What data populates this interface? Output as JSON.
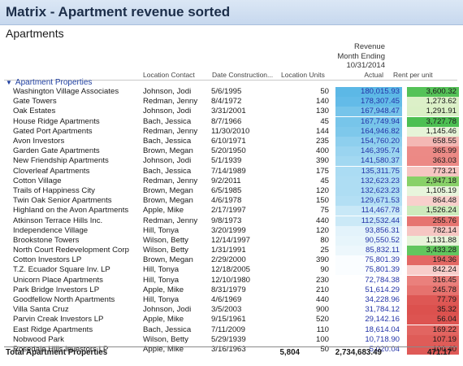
{
  "title": "Matrix - Apartment revenue sorted",
  "subtitle": "Apartments",
  "revenue_header": [
    "Revenue",
    "Month Ending",
    "10/31/2014"
  ],
  "columns": {
    "contact": "Location Contact",
    "date": "Date Construction...",
    "units": "Location Units",
    "actual": "Actual",
    "rpu": "Rent per unit"
  },
  "group_label": "Apartment Properties",
  "rows": [
    {
      "name": "Washington Village Associates",
      "contact": "Johnson, Jodi",
      "date": "5/6/1995",
      "units": "50",
      "actual": "180,015.93",
      "rpu": "3,600.32",
      "actual_color": "#5cb8e6",
      "rpu_color": "#55c258"
    },
    {
      "name": "Gate Towers",
      "contact": "Redman, Jenny",
      "date": "8/4/1972",
      "units": "140",
      "actual": "178,307.45",
      "rpu": "1,273.62",
      "actual_color": "#63bbe8",
      "rpu_color": "#dcf0c8"
    },
    {
      "name": "Oak Estates",
      "contact": "Johnson, Jodi",
      "date": "3/31/2001",
      "units": "130",
      "actual": "167,948.47",
      "rpu": "1,291.91",
      "actual_color": "#76c4ea",
      "rpu_color": "#daf0c6"
    },
    {
      "name": "House Ridge Apartments",
      "contact": "Bach, Jessica",
      "date": "8/7/1966",
      "units": "45",
      "actual": "167,749.94",
      "rpu": "3,727.78",
      "actual_color": "#77c5ea",
      "rpu_color": "#4cbf52"
    },
    {
      "name": "Gated Port Apartments",
      "contact": "Redman, Jenny",
      "date": "11/30/2010",
      "units": "144",
      "actual": "164,946.82",
      "rpu": "1,145.46",
      "actual_color": "#7ec8eb",
      "rpu_color": "#e6f4d8"
    },
    {
      "name": "Avon Investors",
      "contact": "Bach, Jessica",
      "date": "6/10/1971",
      "units": "235",
      "actual": "154,760.20",
      "rpu": "658.55",
      "actual_color": "#8ecfee",
      "rpu_color": "#f4b8b4"
    },
    {
      "name": "Garden Gate Apartments",
      "contact": "Brown, Megan",
      "date": "5/20/1950",
      "units": "400",
      "actual": "146,395.74",
      "rpu": "365.99",
      "actual_color": "#9ad4f0",
      "rpu_color": "#ec8a86"
    },
    {
      "name": "New Friendship Apartments",
      "contact": "Johnson, Jodi",
      "date": "5/1/1939",
      "units": "390",
      "actual": "141,580.37",
      "rpu": "363.03",
      "actual_color": "#a2d8f1",
      "rpu_color": "#ec8985"
    },
    {
      "name": "Cloverleaf Apartments",
      "contact": "Bach, Jessica",
      "date": "7/14/1989",
      "units": "175",
      "actual": "135,311.75",
      "rpu": "773.21",
      "actual_color": "#abdcf3",
      "rpu_color": "#f6c6c2"
    },
    {
      "name": "Cotton Village",
      "contact": "Redman, Jenny",
      "date": "9/2/2011",
      "units": "45",
      "actual": "132,623.23",
      "rpu": "2,947.18",
      "actual_color": "#aeddf3",
      "rpu_color": "#88d168"
    },
    {
      "name": "Trails of Happiness City",
      "contact": "Brown, Megan",
      "date": "6/5/1985",
      "units": "120",
      "actual": "132,623.23",
      "rpu": "1,105.19",
      "actual_color": "#aeddf3",
      "rpu_color": "#e8f5dc"
    },
    {
      "name": "Twin Oak Senior Apartments",
      "contact": "Brown, Megan",
      "date": "4/6/1978",
      "units": "150",
      "actual": "129,671.53",
      "rpu": "864.48",
      "actual_color": "#b3dff4",
      "rpu_color": "#f8d0cc"
    },
    {
      "name": "Highland on the Avon Apartments",
      "contact": "Apple, Mike",
      "date": "2/17/1997",
      "units": "75",
      "actual": "114,467.78",
      "rpu": "1,526.24",
      "actual_color": "#c8e8f7",
      "rpu_color": "#cdeabc"
    },
    {
      "name": "Atkinson Terrace Hills Inc.",
      "contact": "Redman, Jenny",
      "date": "9/8/1973",
      "units": "440",
      "actual": "112,532.44",
      "rpu": "255.76",
      "actual_color": "#cbe9f7",
      "rpu_color": "#e67470"
    },
    {
      "name": "Independence Village",
      "contact": "Hill, Tonya",
      "date": "3/20/1999",
      "units": "120",
      "actual": "93,856.31",
      "rpu": "782.14",
      "actual_color": "#e3f3fb",
      "rpu_color": "#f6c7c3"
    },
    {
      "name": "Brookstone Towers",
      "contact": "Wilson, Betty",
      "date": "12/14/1997",
      "units": "80",
      "actual": "90,550.52",
      "rpu": "1,131.88",
      "actual_color": "#e7f5fb",
      "rpu_color": "#e7f4da"
    },
    {
      "name": "North Court Redevelopment Corp",
      "contact": "Wilson, Betty",
      "date": "1/31/1991",
      "units": "25",
      "actual": "85,832.11",
      "rpu": "3,433.28",
      "actual_color": "#edf7fc",
      "rpu_color": "#62c65e"
    },
    {
      "name": "Cotton Investors LP",
      "contact": "Brown, Megan",
      "date": "2/29/2000",
      "units": "390",
      "actual": "75,801.39",
      "rpu": "194.36",
      "actual_color": "#fafdff",
      "rpu_color": "#e36864"
    },
    {
      "name": "T.Z. Ecuador Square Inv. LP",
      "contact": "Hill, Tonya",
      "date": "12/18/2005",
      "units": "90",
      "actual": "75,801.39",
      "rpu": "842.24",
      "actual_color": "#fafdff",
      "rpu_color": "#f8cdca"
    },
    {
      "name": "Unicorn Place Apartments",
      "contact": "Hill, Tonya",
      "date": "12/10/1980",
      "units": "230",
      "actual": "72,784.38",
      "rpu": "316.45",
      "actual_color": "#ffffff",
      "rpu_color": "#ea807c"
    },
    {
      "name": "Park Bridge Investors LP",
      "contact": "Apple, Mike",
      "date": "8/31/1979",
      "units": "210",
      "actual": "51,614.29",
      "rpu": "245.78",
      "actual_color": "#ffffff",
      "rpu_color": "#e6726e"
    },
    {
      "name": "Goodfellow North Apartments",
      "contact": "Hill, Tonya",
      "date": "4/6/1969",
      "units": "440",
      "actual": "34,228.96",
      "rpu": "77.79",
      "actual_color": "#ffffff",
      "rpu_color": "#de5754"
    },
    {
      "name": "Villa Santa Cruz",
      "contact": "Johnson, Jodi",
      "date": "3/5/2003",
      "units": "900",
      "actual": "31,784.12",
      "rpu": "35.32",
      "actual_color": "#ffffff",
      "rpu_color": "#dc514e"
    },
    {
      "name": "Parvin Creak Investors LP",
      "contact": "Apple, Mike",
      "date": "9/15/1961",
      "units": "520",
      "actual": "29,142.16",
      "rpu": "56.04",
      "actual_color": "#ffffff",
      "rpu_color": "#dd5451"
    },
    {
      "name": "East Ridge Apartments",
      "contact": "Bach, Jessica",
      "date": "7/11/2009",
      "units": "110",
      "actual": "18,614.04",
      "rpu": "169.22",
      "actual_color": "#ffffff",
      "rpu_color": "#e26561"
    },
    {
      "name": "Nobwood Park",
      "contact": "Wilson, Betty",
      "date": "5/29/1939",
      "units": "100",
      "actual": "10,718.90",
      "rpu": "107.19",
      "actual_color": "#ffffff",
      "rpu_color": "#df5c58"
    },
    {
      "name": "Rosedale Hills Investors LP",
      "contact": "Apple, Mike",
      "date": "3/16/1963",
      "units": "50",
      "actual": "5,020.04",
      "rpu": "100.40",
      "actual_color": "#ffffff",
      "rpu_color": "#df5a57"
    }
  ],
  "total": {
    "label": "Total Apartment Properties",
    "units": "5,804",
    "actual": "2,734,683.49",
    "rpu": "471.17"
  }
}
